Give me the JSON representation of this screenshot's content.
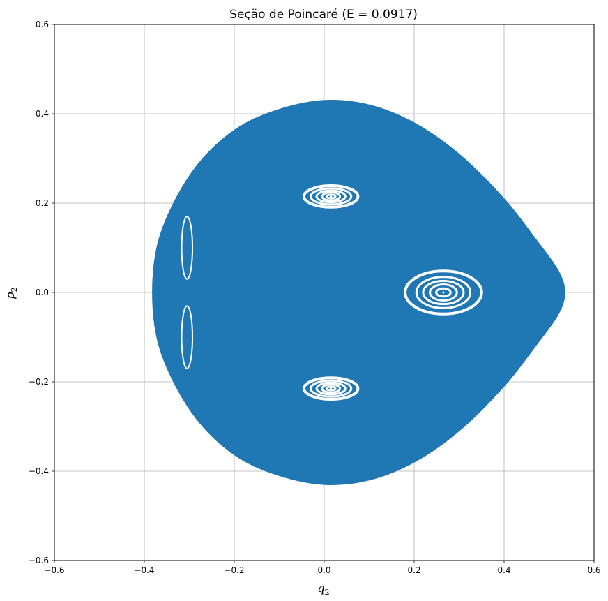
{
  "chart_data": {
    "type": "scatter",
    "title": "Seção de Poincaré (E = 0.0917)",
    "xlabel": {
      "var": "q",
      "sub": "2"
    },
    "ylabel": {
      "var": "p",
      "sub": "2"
    },
    "xlim": [
      -0.6,
      0.6
    ],
    "ylim": [
      -0.6,
      0.6
    ],
    "grid": true,
    "legend": "none",
    "x_ticks": [
      -0.6,
      -0.4,
      -0.2,
      0.0,
      0.2,
      0.4,
      0.6
    ],
    "y_ticks": [
      -0.6,
      -0.4,
      -0.2,
      0.0,
      0.2,
      0.4,
      0.6
    ],
    "x_tick_labels": [
      "−0.6",
      "−0.4",
      "−0.2",
      "0.0",
      "0.2",
      "0.4",
      "0.6"
    ],
    "y_tick_labels": [
      "−0.6",
      "−0.4",
      "−0.2",
      "0.0",
      "0.2",
      "0.4",
      "0.6"
    ],
    "series": [
      {
        "color": "#1f77b4",
        "region_boundary": [
          [
            -0.382,
            0.0
          ],
          [
            -0.37,
            0.11
          ],
          [
            -0.33,
            0.21
          ],
          [
            -0.27,
            0.3
          ],
          [
            -0.19,
            0.37
          ],
          [
            -0.1,
            0.41
          ],
          [
            0.0,
            0.43
          ],
          [
            0.1,
            0.42
          ],
          [
            0.2,
            0.38
          ],
          [
            0.3,
            0.31
          ],
          [
            0.4,
            0.21
          ],
          [
            0.47,
            0.12
          ],
          [
            0.52,
            0.05
          ],
          [
            0.535,
            0.0
          ],
          [
            0.52,
            -0.05
          ],
          [
            0.47,
            -0.12
          ],
          [
            0.4,
            -0.21
          ],
          [
            0.3,
            -0.31
          ],
          [
            0.2,
            -0.38
          ],
          [
            0.1,
            -0.42
          ],
          [
            0.0,
            -0.43
          ],
          [
            -0.1,
            -0.41
          ],
          [
            -0.19,
            -0.37
          ],
          [
            -0.27,
            -0.3
          ],
          [
            -0.33,
            -0.21
          ],
          [
            -0.37,
            -0.11
          ]
        ],
        "islands": [
          {
            "center": [
              0.265,
              0.0
            ],
            "radii_x": [
              0.085,
              0.06,
              0.045,
              0.03,
              0.016
            ],
            "radii_y": [
              0.048,
              0.035,
              0.026,
              0.018,
              0.009
            ]
          },
          {
            "center": [
              0.015,
              0.215
            ],
            "radii_x": [
              0.06,
              0.045,
              0.032,
              0.02,
              0.01
            ],
            "radii_y": [
              0.024,
              0.018,
              0.013,
              0.009,
              0.004
            ]
          },
          {
            "center": [
              0.015,
              -0.215
            ],
            "radii_x": [
              0.06,
              0.045,
              0.032,
              0.02,
              0.01
            ],
            "radii_y": [
              0.024,
              0.018,
              0.013,
              0.009,
              0.004
            ]
          }
        ],
        "crescents": [
          {
            "center": [
              -0.305,
              0.1
            ],
            "rx": 0.012,
            "ry": 0.07
          },
          {
            "center": [
              -0.305,
              -0.1
            ],
            "rx": 0.012,
            "ry": 0.07
          }
        ]
      }
    ]
  }
}
